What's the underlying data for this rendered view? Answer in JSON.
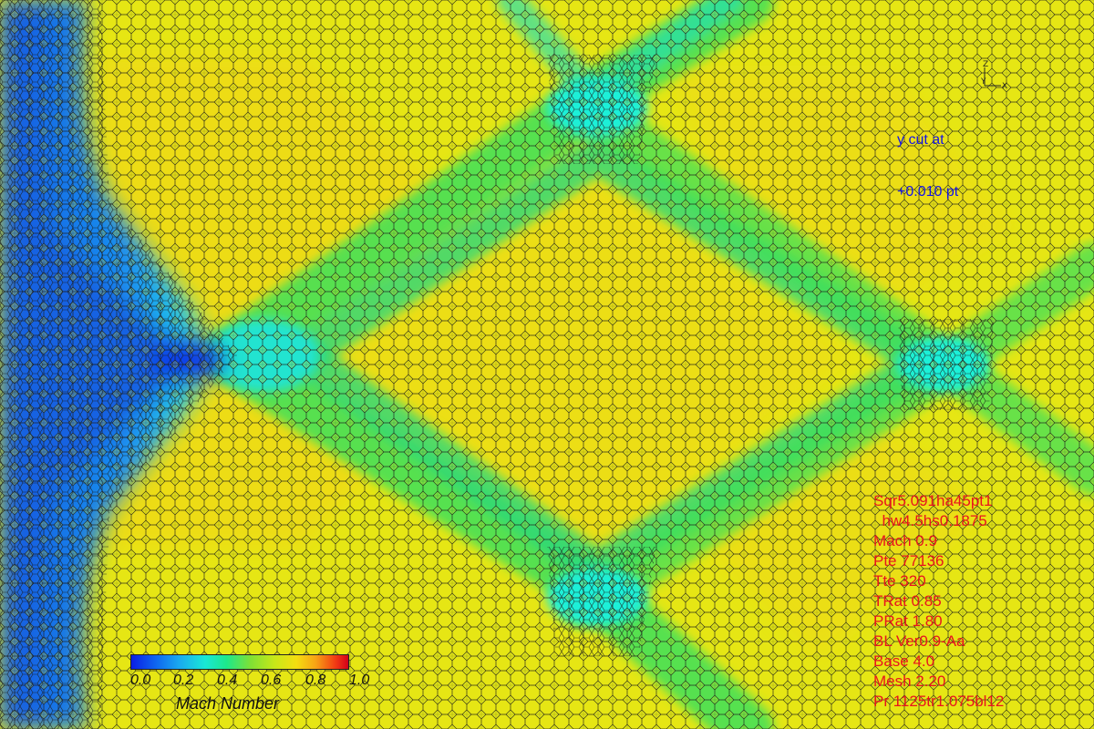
{
  "cut": {
    "line1": "y cut at",
    "line2": "+0.010 pt"
  },
  "axes": {
    "z": "Z",
    "y": "Y",
    "x": "X"
  },
  "run_info": [
    "Sqr5.091ha45pt1",
    "  hw4.5hs0.1875",
    "Mach 0.9",
    "Pte 77136",
    "Tte 320",
    "TRat 0.85",
    "PRat 1.80",
    "BL Ver0.9-Aa",
    "Base 4.0",
    "Mesh 2.20",
    "Pr 1125tr1.075bl12"
  ],
  "legend": {
    "title": "Mach Number",
    "ticks": [
      "0.0",
      "0.2",
      "0.4",
      "0.6",
      "0.8",
      "1.0"
    ],
    "colors": {
      "low": "#0a1ee6",
      "mid": "#1de88a",
      "high": "#d4001a"
    }
  }
}
